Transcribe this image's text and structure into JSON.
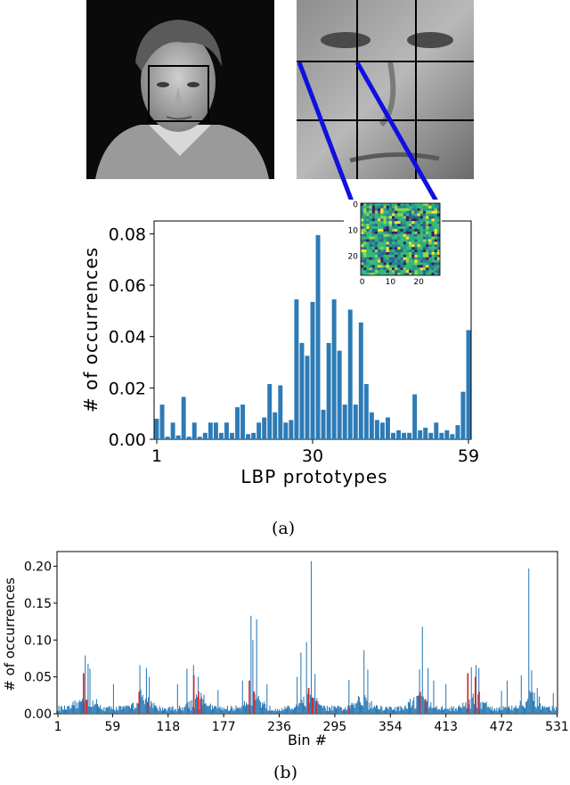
{
  "figure": {
    "caption_a": "(a)",
    "caption_b": "(b)"
  },
  "colors": {
    "bar": "#2d7bb6",
    "highlight": "#d62728",
    "connector": "#1010e0"
  },
  "icons": [
    "face-photo-icon",
    "face-grid-crop-icon",
    "lbp-texture-map-icon"
  ],
  "inset": {
    "x_ticks": [
      "0",
      "10",
      "20"
    ],
    "y_ticks": [
      "0",
      "10",
      "20"
    ]
  },
  "chart_data": [
    {
      "type": "bar",
      "title": "",
      "xlabel": "LBP prototypes",
      "ylabel": "# of occurrences",
      "x_tick_labels": [
        "1",
        "30",
        "59"
      ],
      "ylim": [
        0,
        0.085
      ],
      "y_ticks": [
        "0.00",
        "0.02",
        "0.04",
        "0.06",
        "0.08"
      ],
      "grid": false,
      "x": [
        1,
        2,
        3,
        4,
        5,
        6,
        7,
        8,
        9,
        10,
        11,
        12,
        13,
        14,
        15,
        16,
        17,
        18,
        19,
        20,
        21,
        22,
        23,
        24,
        25,
        26,
        27,
        28,
        29,
        30,
        31,
        32,
        33,
        34,
        35,
        36,
        37,
        38,
        39,
        40,
        41,
        42,
        43,
        44,
        45,
        46,
        47,
        48,
        49,
        50,
        51,
        52,
        53,
        54,
        55,
        56,
        57,
        58,
        59
      ],
      "values": [
        0.008,
        0.0135,
        0.001,
        0.0065,
        0.0015,
        0.0165,
        0.001,
        0.0065,
        0.001,
        0.0025,
        0.0065,
        0.0065,
        0.0025,
        0.0065,
        0.0025,
        0.0125,
        0.0135,
        0.002,
        0.0025,
        0.0065,
        0.0085,
        0.0215,
        0.0105,
        0.021,
        0.0065,
        0.0075,
        0.0545,
        0.0375,
        0.0325,
        0.0535,
        0.0795,
        0.0115,
        0.0375,
        0.0545,
        0.0345,
        0.0135,
        0.0505,
        0.0135,
        0.0455,
        0.0215,
        0.0105,
        0.0075,
        0.0065,
        0.0085,
        0.0025,
        0.0035,
        0.0025,
        0.0025,
        0.0175,
        0.0035,
        0.0045,
        0.0025,
        0.0065,
        0.0025,
        0.0035,
        0.002,
        0.0055,
        0.0185,
        0.0425
      ]
    },
    {
      "type": "bar",
      "title": "",
      "xlabel": "Bin #",
      "ylabel": "# of occurrences",
      "x_tick_labels": [
        "1",
        "59",
        "118",
        "177",
        "236",
        "295",
        "354",
        "413",
        "472",
        "531"
      ],
      "y_ticks": [
        "0.00",
        "0.05",
        "0.10",
        "0.15",
        "0.20"
      ],
      "ylim": [
        0,
        0.22
      ],
      "grid": false,
      "bins": 531,
      "segment_length": 59,
      "baseline": 0.008,
      "peaks": [
        [
          30,
          0.079
        ],
        [
          33,
          0.068
        ],
        [
          35,
          0.061
        ],
        [
          28,
          0.054
        ],
        [
          60,
          0.04
        ],
        [
          88,
          0.066
        ],
        [
          95,
          0.062
        ],
        [
          98,
          0.05
        ],
        [
          128,
          0.04
        ],
        [
          138,
          0.061
        ],
        [
          145,
          0.066
        ],
        [
          150,
          0.05
        ],
        [
          171,
          0.032
        ],
        [
          197,
          0.045
        ],
        [
          206,
          0.133
        ],
        [
          208,
          0.1
        ],
        [
          212,
          0.128
        ],
        [
          223,
          0.04
        ],
        [
          255,
          0.05
        ],
        [
          259,
          0.083
        ],
        [
          265,
          0.097
        ],
        [
          270,
          0.207
        ],
        [
          274,
          0.054
        ],
        [
          310,
          0.046
        ],
        [
          326,
          0.086
        ],
        [
          330,
          0.06
        ],
        [
          385,
          0.06
        ],
        [
          388,
          0.118
        ],
        [
          394,
          0.062
        ],
        [
          400,
          0.045
        ],
        [
          413,
          0.04
        ],
        [
          440,
          0.063
        ],
        [
          445,
          0.066
        ],
        [
          448,
          0.062
        ],
        [
          472,
          0.031
        ],
        [
          478,
          0.045
        ],
        [
          493,
          0.052
        ],
        [
          501,
          0.197
        ],
        [
          504,
          0.059
        ],
        [
          510,
          0.035
        ],
        [
          527,
          0.028
        ]
      ],
      "red_bins": [
        [
          28,
          0.055
        ],
        [
          31,
          0.018
        ],
        [
          87,
          0.03
        ],
        [
          96,
          0.016
        ],
        [
          145,
          0.052
        ],
        [
          150,
          0.03
        ],
        [
          153,
          0.022
        ],
        [
          204,
          0.045
        ],
        [
          209,
          0.03
        ],
        [
          267,
          0.035
        ],
        [
          271,
          0.022
        ],
        [
          275,
          0.017
        ],
        [
          310,
          0.01
        ],
        [
          385,
          0.03
        ],
        [
          391,
          0.02
        ],
        [
          436,
          0.055
        ],
        [
          444,
          0.05
        ],
        [
          448,
          0.03
        ]
      ]
    }
  ]
}
